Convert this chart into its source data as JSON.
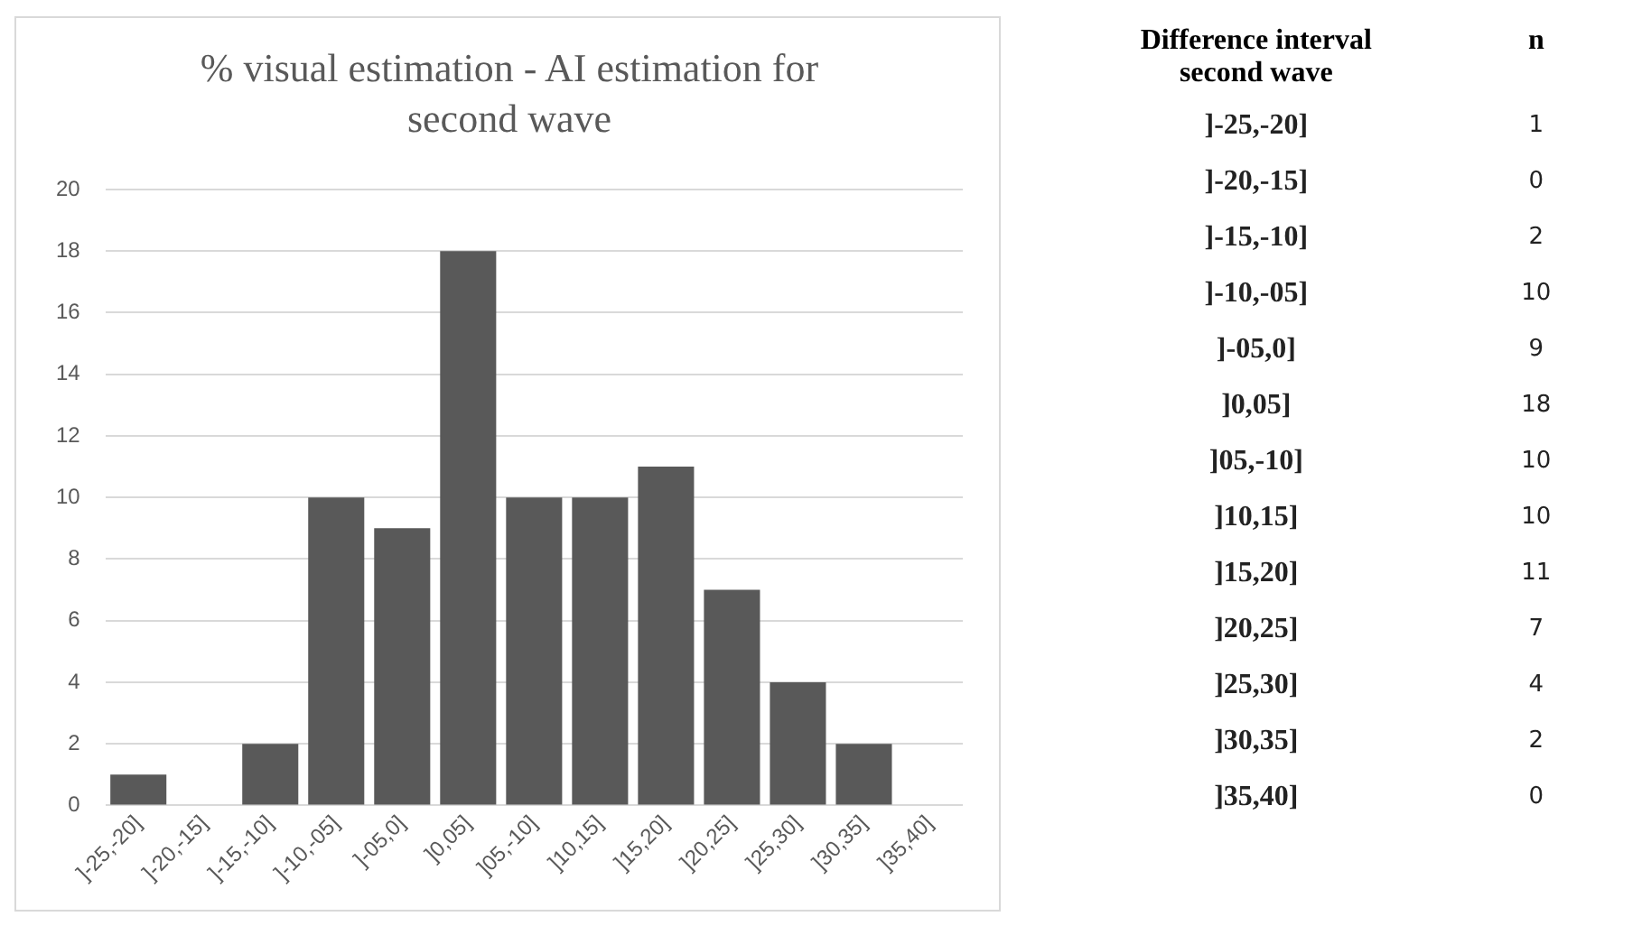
{
  "chart_data": [
    {
      "type": "bar",
      "title": "% visual estimation - AI estimation for second wave",
      "categories": [
        "]-25,-20]",
        "]-20,-15]",
        "]-15,-10]",
        "]-10,-05]",
        "]-05,0]",
        "]0,05]",
        "]05,-10]",
        "]10,15]",
        "]15,20]",
        "]20,25]",
        "]25,30]",
        "]30,35]",
        "]35,40]"
      ],
      "values": [
        1,
        0,
        2,
        10,
        9,
        18,
        10,
        10,
        11,
        7,
        4,
        2,
        0
      ],
      "color": "#595959",
      "ylim": [
        0,
        20
      ],
      "yticks": [
        0,
        2,
        4,
        6,
        8,
        10,
        12,
        14,
        16,
        18,
        20
      ],
      "grid": "y",
      "legend": false
    },
    {
      "type": "other",
      "categories": [
        "]-25,-20]",
        "]-20,-15]",
        "]-15,-10]",
        "]-10,-05]",
        "]-05,0]",
        "]0,05]",
        "]05,-10]",
        "]10,15]",
        "]15,20]",
        "]20,25]",
        "]25,30]",
        "]30,35]",
        "]35,40]"
      ],
      "values": [
        1,
        0,
        2,
        10,
        9,
        18,
        10,
        10,
        11,
        7,
        4,
        2,
        0
      ],
      "data_labels": true,
      "annotations": [
        "Difference interval second wave",
        "n"
      ]
    }
  ]
}
